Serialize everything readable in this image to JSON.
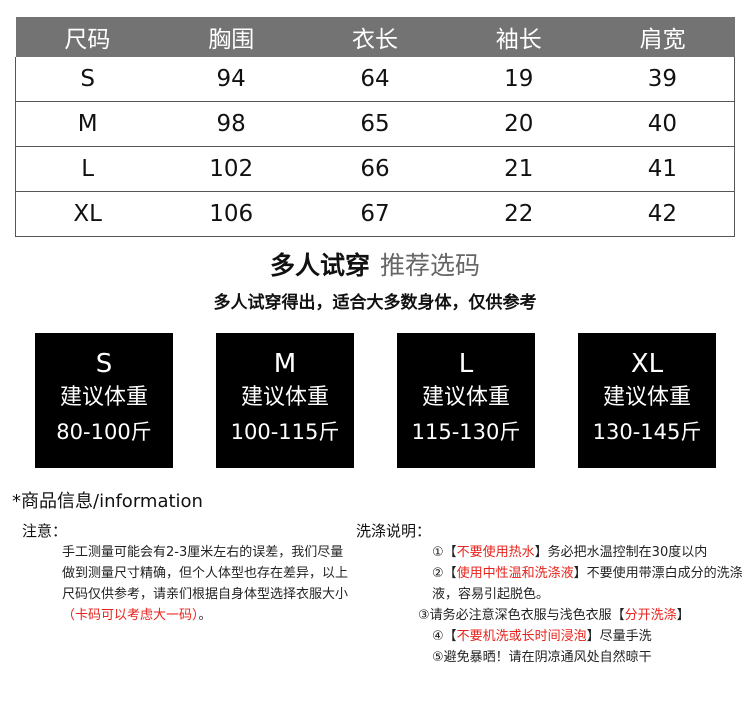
{
  "size_table": {
    "headers": [
      "尺码",
      "胸围",
      "衣长",
      "袖长",
      "肩宽"
    ],
    "rows": [
      [
        "S",
        "94",
        "64",
        "19",
        "39"
      ],
      [
        "M",
        "98",
        "65",
        "20",
        "40"
      ],
      [
        "L",
        "102",
        "66",
        "21",
        "41"
      ],
      [
        "XL",
        "106",
        "67",
        "22",
        "42"
      ]
    ],
    "header_bg": "#737373"
  },
  "recommend": {
    "title": "多人试穿",
    "title_sub": "推荐选码",
    "subtitle": "多人试穿得出，适合大多数身体，仅供参考",
    "boxes": [
      {
        "size": "S",
        "label": "建议体重",
        "range": "80-100斤"
      },
      {
        "size": "M",
        "label": "建议体重",
        "range": "100-115斤"
      },
      {
        "size": "L",
        "label": "建议体重",
        "range": "115-130斤"
      },
      {
        "size": "XL",
        "label": "建议体重",
        "range": "130-145斤"
      }
    ]
  },
  "info": {
    "heading": "*商品信息/information",
    "note_heading": "注意：",
    "note_text": "手工测量可能会有2-3厘米左右的误差，我们尽量做到测量尺寸精确，但个人体型也存在差异，以上尺码仅供参考，请亲们根据自身体型选择衣服大小",
    "note_red": "（卡码可以考虑大一码）",
    "note_end": "。",
    "wash_heading": "洗涤说明：",
    "wash_items": [
      {
        "pre": "①【",
        "red": "不要使用热水",
        "post": "】务必把水温控制在30度以内"
      },
      {
        "pre": "②【",
        "red": "使用中性温和洗涤液",
        "post": "】不要使用带漂白成分的洗涤液，容易引起脱色。"
      },
      {
        "pre": "③请务必注意深色衣服与浅色衣服【",
        "red": "分开洗涤",
        "post": "】"
      },
      {
        "pre": "④【",
        "red": "不要机洗或长时间浸泡",
        "post": "】尽量手洗"
      },
      {
        "pre": "⑤避免暴晒！请在阴凉通风处自然晾干",
        "red": "",
        "post": ""
      }
    ],
    "accent_red": "#e8221c"
  }
}
